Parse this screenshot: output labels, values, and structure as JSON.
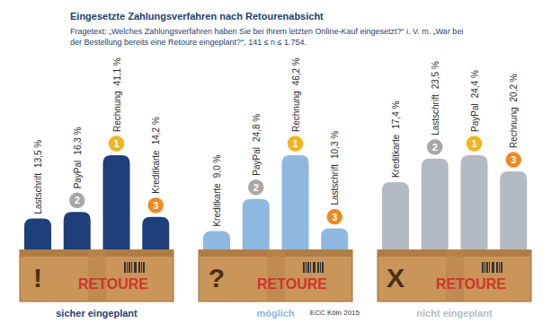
{
  "title": "Eingesetzte Zahlungsverfahren nach Retourenabsicht",
  "subtitle": "Fragetext: „Welches Zahlungsverfahren haben Sie bei Ihrem letzten Online-Kauf eingesetzt?“ i. V. m. „War bei der Bestellung bereits eine Retoure eingeplant?“, 141 ≤ n ≤ 1.754.",
  "source": "ECC Köln 2015",
  "box_label": "RETOURE",
  "chart_data": [
    {
      "type": "bar",
      "title": "sicher eingeplant",
      "symbol": "!",
      "categories": [
        "Lastschrift",
        "PayPal",
        "Rechnung",
        "Kreditkarte"
      ],
      "values": [
        13.5,
        16.3,
        41.1,
        14.2
      ],
      "value_labels": [
        "13,5 %",
        "16,3 %",
        "41,1 %",
        "14,2 %"
      ],
      "ranks": [
        null,
        2,
        1,
        3
      ],
      "color": "#1f3f7a",
      "data_labels": true,
      "tick_labels": false
    },
    {
      "type": "bar",
      "title": "möglich",
      "symbol": "?",
      "categories": [
        "Kreditkarte",
        "PayPal",
        "Rechnung",
        "Lastschrift"
      ],
      "values": [
        9.0,
        24.8,
        46.2,
        10.3
      ],
      "value_labels": [
        "9,0 %",
        "24,8 %",
        "46,2 %",
        "10,3 %"
      ],
      "ranks": [
        null,
        2,
        1,
        3
      ],
      "color": "#8fb8e0",
      "data_labels": true,
      "tick_labels": false
    },
    {
      "type": "bar",
      "title": "nicht eingeplant",
      "symbol": "X",
      "categories": [
        "Kreditkarte",
        "Lastschrift",
        "PayPal",
        "Rechnung"
      ],
      "values": [
        17.4,
        23.5,
        24.4,
        20.2
      ],
      "value_labels": [
        "17,4 %",
        "23,5 %",
        "24,4 %",
        "20,2 %"
      ],
      "ranks": [
        null,
        2,
        1,
        3
      ],
      "color": "#b4bac3",
      "data_labels": true,
      "tick_labels": false
    }
  ]
}
